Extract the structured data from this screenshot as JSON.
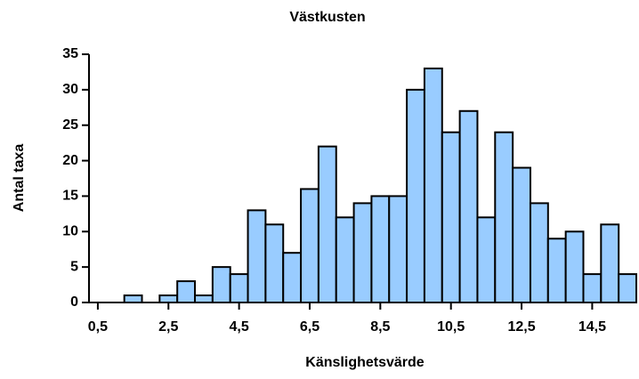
{
  "chart_data": {
    "type": "histogram",
    "title": "Västkusten",
    "x_label": "Känslighetsvärde",
    "y_label": "Antal taxa",
    "bins": [
      1.25,
      1.75,
      2.25,
      2.75,
      3.25,
      3.75,
      4.25,
      4.75,
      5.25,
      5.75,
      6.25,
      6.75,
      7.25,
      7.75,
      8.25,
      8.75,
      9.25,
      9.75,
      10.25,
      10.75,
      11.25,
      11.75,
      12.25,
      12.75,
      13.25,
      13.75,
      14.25,
      14.75,
      15.25,
      15.75
    ],
    "values": [
      1,
      0,
      1,
      3,
      1,
      5,
      4,
      13,
      11,
      7,
      16,
      22,
      12,
      14,
      15,
      15,
      30,
      33,
      24,
      27,
      12,
      24,
      19,
      14,
      9,
      10,
      4,
      11,
      4
    ],
    "color": "#99ccff",
    "xlim": [
      0.25,
      15.75
    ],
    "xticks": [
      {
        "value": 0.5,
        "label": "0,5"
      },
      {
        "value": 2.5,
        "label": "2,5"
      },
      {
        "value": 4.5,
        "label": "4,5"
      },
      {
        "value": 6.5,
        "label": "6,5"
      },
      {
        "value": 8.5,
        "label": "8,5"
      },
      {
        "value": 10.5,
        "label": "10,5"
      },
      {
        "value": 12.5,
        "label": "12,5"
      },
      {
        "value": 14.5,
        "label": "14,5"
      }
    ],
    "ylim": [
      0,
      35
    ],
    "yticks": [
      0,
      5,
      10,
      15,
      20,
      25,
      30,
      35
    ],
    "grid": false
  }
}
